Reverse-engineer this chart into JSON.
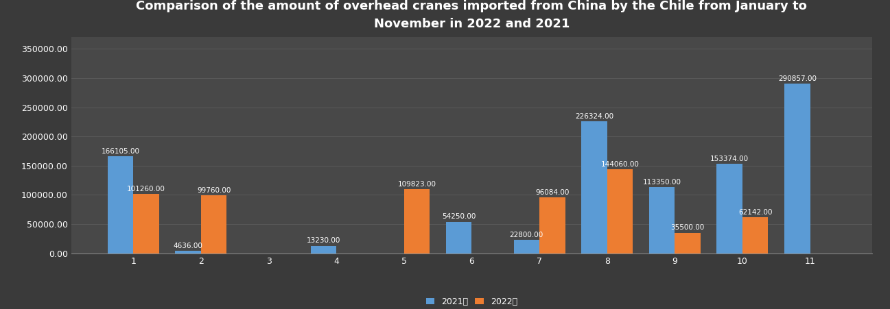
{
  "title": "Comparison of the amount of overhead cranes imported from China by the Chile from January to\nNovember in 2022 and 2021",
  "months": [
    1,
    2,
    3,
    4,
    5,
    6,
    7,
    8,
    9,
    10,
    11
  ],
  "values_2021": [
    166105,
    4636,
    0,
    13230,
    0,
    54250,
    22800,
    226324,
    113350,
    153374,
    290857
  ],
  "values_2022": [
    101260,
    99760,
    0,
    0,
    109823,
    0,
    96084,
    144060,
    35500,
    62142,
    0
  ],
  "color_2021": "#5B9BD5",
  "color_2022": "#ED7D31",
  "background_color": "#3a3a3a",
  "plot_bg_color": "#484848",
  "grid_color": "#5a5a5a",
  "text_color": "#FFFFFF",
  "legend_2021": "2021年",
  "legend_2022": "2022年",
  "ylim": [
    0,
    370000
  ],
  "yticks": [
    0,
    50000,
    100000,
    150000,
    200000,
    250000,
    300000,
    350000
  ],
  "bar_width": 0.38,
  "label_fontsize": 7.5,
  "title_fontsize": 13,
  "tick_fontsize": 9
}
